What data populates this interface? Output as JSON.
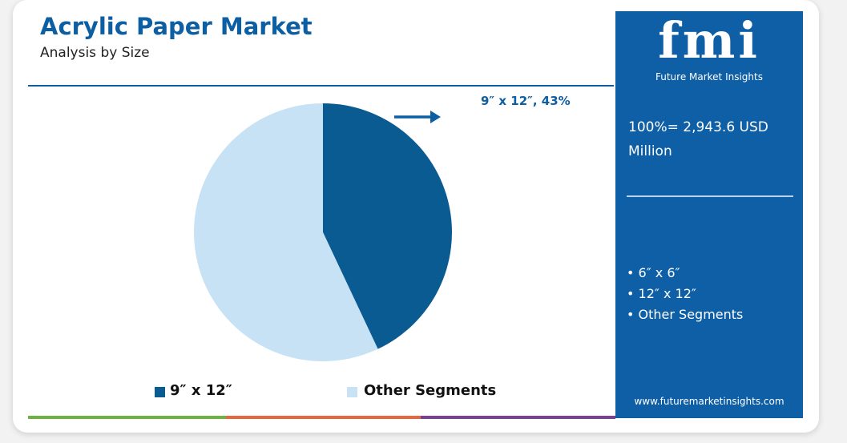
{
  "chart_data": {
    "type": "pie",
    "title": "Acrylic Paper Market",
    "subtitle": "Analysis by Size",
    "categories": [
      "9″ x 12″",
      "Other Segments"
    ],
    "values": [
      43,
      57
    ],
    "value_labels": [
      "9″ x 12″, 43%",
      null
    ],
    "colors": [
      "#0b5b93",
      "#c6e2f4"
    ]
  },
  "panel": {
    "logo": "fmi",
    "brand": "Future Market Insights",
    "total": "100%= 2,943.6 USD Million",
    "segments": [
      "6″ x 6″",
      "12″ x 12″",
      "Other Segments"
    ],
    "website": "www.futuremarketinsights.com"
  }
}
